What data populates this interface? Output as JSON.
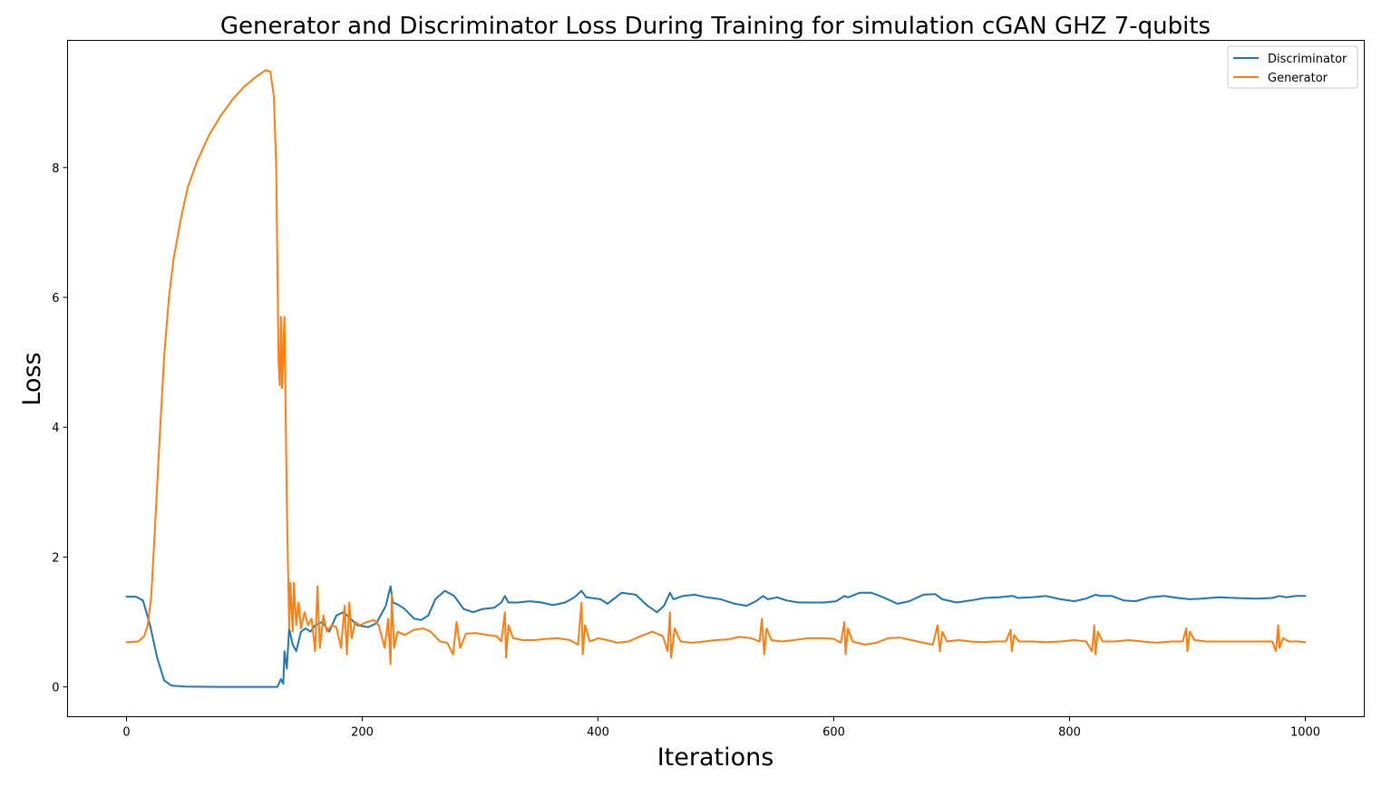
{
  "chart_data": {
    "type": "line",
    "title": "Generator and Discriminator Loss During Training for simulation cGAN GHZ 7-qubits",
    "xlabel": "Iterations",
    "ylabel": "Loss",
    "xlim": [
      -50,
      1050
    ],
    "ylim": [
      -0.46,
      9.96
    ],
    "xticks": [
      0,
      200,
      400,
      600,
      800,
      1000
    ],
    "yticks": [
      0,
      2,
      4,
      6,
      8
    ],
    "grid": false,
    "legend_position": "top-right",
    "series": [
      {
        "name": "Discriminator",
        "color": "#1f77b4",
        "points": [
          [
            0,
            1.39
          ],
          [
            8,
            1.39
          ],
          [
            14,
            1.33
          ],
          [
            20,
            0.95
          ],
          [
            26,
            0.45
          ],
          [
            32,
            0.1
          ],
          [
            38,
            0.02
          ],
          [
            50,
            0.005
          ],
          [
            80,
            0.0
          ],
          [
            120,
            0.0
          ],
          [
            128,
            0.0
          ],
          [
            131,
            0.12
          ],
          [
            133,
            0.05
          ],
          [
            134,
            0.55
          ],
          [
            136,
            0.28
          ],
          [
            138,
            0.9
          ],
          [
            141,
            0.65
          ],
          [
            144,
            0.55
          ],
          [
            148,
            0.85
          ],
          [
            152,
            0.9
          ],
          [
            156,
            0.85
          ],
          [
            160,
            0.95
          ],
          [
            166,
            1.0
          ],
          [
            172,
            0.85
          ],
          [
            178,
            1.1
          ],
          [
            184,
            1.15
          ],
          [
            190,
            1.05
          ],
          [
            196,
            0.95
          ],
          [
            205,
            0.92
          ],
          [
            212,
            0.98
          ],
          [
            220,
            1.25
          ],
          [
            224,
            1.55
          ],
          [
            226,
            1.3
          ],
          [
            230,
            1.27
          ],
          [
            236,
            1.2
          ],
          [
            244,
            1.05
          ],
          [
            250,
            1.03
          ],
          [
            256,
            1.1
          ],
          [
            262,
            1.35
          ],
          [
            270,
            1.48
          ],
          [
            278,
            1.4
          ],
          [
            286,
            1.2
          ],
          [
            294,
            1.15
          ],
          [
            302,
            1.2
          ],
          [
            312,
            1.22
          ],
          [
            318,
            1.3
          ],
          [
            321,
            1.4
          ],
          [
            324,
            1.3
          ],
          [
            332,
            1.3
          ],
          [
            342,
            1.32
          ],
          [
            352,
            1.3
          ],
          [
            362,
            1.26
          ],
          [
            372,
            1.3
          ],
          [
            380,
            1.38
          ],
          [
            386,
            1.48
          ],
          [
            390,
            1.38
          ],
          [
            402,
            1.35
          ],
          [
            408,
            1.28
          ],
          [
            420,
            1.45
          ],
          [
            432,
            1.42
          ],
          [
            442,
            1.25
          ],
          [
            450,
            1.15
          ],
          [
            456,
            1.25
          ],
          [
            461,
            1.45
          ],
          [
            464,
            1.35
          ],
          [
            472,
            1.4
          ],
          [
            482,
            1.42
          ],
          [
            492,
            1.38
          ],
          [
            504,
            1.35
          ],
          [
            516,
            1.28
          ],
          [
            526,
            1.25
          ],
          [
            534,
            1.32
          ],
          [
            540,
            1.4
          ],
          [
            544,
            1.35
          ],
          [
            552,
            1.38
          ],
          [
            560,
            1.33
          ],
          [
            570,
            1.3
          ],
          [
            580,
            1.3
          ],
          [
            592,
            1.3
          ],
          [
            602,
            1.32
          ],
          [
            609,
            1.4
          ],
          [
            612,
            1.38
          ],
          [
            622,
            1.45
          ],
          [
            632,
            1.45
          ],
          [
            642,
            1.38
          ],
          [
            654,
            1.28
          ],
          [
            664,
            1.32
          ],
          [
            676,
            1.42
          ],
          [
            686,
            1.43
          ],
          [
            692,
            1.35
          ],
          [
            704,
            1.3
          ],
          [
            716,
            1.33
          ],
          [
            728,
            1.37
          ],
          [
            740,
            1.38
          ],
          [
            752,
            1.4
          ],
          [
            756,
            1.37
          ],
          [
            768,
            1.38
          ],
          [
            780,
            1.4
          ],
          [
            792,
            1.35
          ],
          [
            804,
            1.32
          ],
          [
            814,
            1.36
          ],
          [
            822,
            1.42
          ],
          [
            826,
            1.4
          ],
          [
            836,
            1.4
          ],
          [
            846,
            1.33
          ],
          [
            856,
            1.32
          ],
          [
            868,
            1.38
          ],
          [
            880,
            1.4
          ],
          [
            892,
            1.37
          ],
          [
            902,
            1.35
          ],
          [
            912,
            1.36
          ],
          [
            926,
            1.38
          ],
          [
            940,
            1.37
          ],
          [
            958,
            1.36
          ],
          [
            972,
            1.37
          ],
          [
            978,
            1.4
          ],
          [
            984,
            1.38
          ],
          [
            992,
            1.4
          ],
          [
            1000,
            1.4
          ]
        ]
      },
      {
        "name": "Generator",
        "color": "#ff7f0e",
        "points": [
          [
            0,
            0.69
          ],
          [
            10,
            0.7
          ],
          [
            15,
            0.78
          ],
          [
            18,
            0.95
          ],
          [
            21,
            1.4
          ],
          [
            24,
            2.4
          ],
          [
            28,
            3.8
          ],
          [
            32,
            5.1
          ],
          [
            36,
            6.0
          ],
          [
            40,
            6.6
          ],
          [
            46,
            7.2
          ],
          [
            52,
            7.7
          ],
          [
            60,
            8.1
          ],
          [
            70,
            8.5
          ],
          [
            80,
            8.8
          ],
          [
            90,
            9.05
          ],
          [
            100,
            9.25
          ],
          [
            110,
            9.4
          ],
          [
            118,
            9.5
          ],
          [
            122,
            9.48
          ],
          [
            125,
            9.1
          ],
          [
            127,
            8.0
          ],
          [
            128,
            6.5
          ],
          [
            129,
            5.0
          ],
          [
            130,
            4.65
          ],
          [
            131,
            5.7
          ],
          [
            132,
            4.6
          ],
          [
            134,
            5.7
          ],
          [
            136,
            2.8
          ],
          [
            138,
            0.9
          ],
          [
            139,
            1.6
          ],
          [
            141,
            0.85
          ],
          [
            142,
            1.6
          ],
          [
            144,
            0.95
          ],
          [
            146,
            1.3
          ],
          [
            148,
            0.9
          ],
          [
            151,
            1.15
          ],
          [
            154,
            0.95
          ],
          [
            157,
            1.05
          ],
          [
            160,
            0.55
          ],
          [
            162,
            1.55
          ],
          [
            164,
            0.6
          ],
          [
            167,
            1.1
          ],
          [
            170,
            0.85
          ],
          [
            174,
            0.95
          ],
          [
            178,
            0.92
          ],
          [
            182,
            0.6
          ],
          [
            185,
            1.25
          ],
          [
            187,
            0.5
          ],
          [
            189,
            1.3
          ],
          [
            191,
            0.75
          ],
          [
            194,
            1.0
          ],
          [
            198,
            0.95
          ],
          [
            204,
            1.0
          ],
          [
            210,
            1.03
          ],
          [
            214,
            0.95
          ],
          [
            219,
            0.6
          ],
          [
            222,
            1.05
          ],
          [
            224,
            0.35
          ],
          [
            225,
            1.42
          ],
          [
            227,
            0.6
          ],
          [
            230,
            0.85
          ],
          [
            236,
            0.8
          ],
          [
            244,
            0.88
          ],
          [
            252,
            0.9
          ],
          [
            258,
            0.85
          ],
          [
            266,
            0.7
          ],
          [
            272,
            0.68
          ],
          [
            277,
            0.5
          ],
          [
            280,
            1.0
          ],
          [
            283,
            0.6
          ],
          [
            288,
            0.82
          ],
          [
            296,
            0.83
          ],
          [
            306,
            0.8
          ],
          [
            314,
            0.78
          ],
          [
            318,
            0.7
          ],
          [
            321,
            1.15
          ],
          [
            322,
            0.45
          ],
          [
            324,
            0.95
          ],
          [
            328,
            0.75
          ],
          [
            336,
            0.72
          ],
          [
            346,
            0.72
          ],
          [
            356,
            0.74
          ],
          [
            366,
            0.75
          ],
          [
            376,
            0.72
          ],
          [
            383,
            0.65
          ],
          [
            386,
            1.3
          ],
          [
            387,
            0.5
          ],
          [
            389,
            0.95
          ],
          [
            393,
            0.7
          ],
          [
            400,
            0.75
          ],
          [
            408,
            0.72
          ],
          [
            416,
            0.68
          ],
          [
            426,
            0.7
          ],
          [
            436,
            0.78
          ],
          [
            446,
            0.85
          ],
          [
            455,
            0.78
          ],
          [
            459,
            0.55
          ],
          [
            461,
            1.15
          ],
          [
            462,
            0.45
          ],
          [
            465,
            0.9
          ],
          [
            470,
            0.7
          ],
          [
            480,
            0.68
          ],
          [
            490,
            0.7
          ],
          [
            500,
            0.72
          ],
          [
            510,
            0.73
          ],
          [
            520,
            0.77
          ],
          [
            530,
            0.75
          ],
          [
            537,
            0.7
          ],
          [
            539,
            1.05
          ],
          [
            541,
            0.5
          ],
          [
            543,
            0.9
          ],
          [
            547,
            0.72
          ],
          [
            556,
            0.7
          ],
          [
            566,
            0.72
          ],
          [
            578,
            0.75
          ],
          [
            590,
            0.75
          ],
          [
            600,
            0.74
          ],
          [
            606,
            0.68
          ],
          [
            609,
            1.0
          ],
          [
            610,
            0.5
          ],
          [
            612,
            0.9
          ],
          [
            616,
            0.7
          ],
          [
            626,
            0.65
          ],
          [
            636,
            0.68
          ],
          [
            646,
            0.75
          ],
          [
            656,
            0.76
          ],
          [
            666,
            0.72
          ],
          [
            676,
            0.68
          ],
          [
            684,
            0.65
          ],
          [
            688,
            0.95
          ],
          [
            690,
            0.55
          ],
          [
            692,
            0.85
          ],
          [
            696,
            0.7
          ],
          [
            706,
            0.72
          ],
          [
            716,
            0.7
          ],
          [
            726,
            0.69
          ],
          [
            736,
            0.7
          ],
          [
            746,
            0.7
          ],
          [
            750,
            0.88
          ],
          [
            751,
            0.55
          ],
          [
            753,
            0.8
          ],
          [
            757,
            0.7
          ],
          [
            768,
            0.7
          ],
          [
            780,
            0.69
          ],
          [
            792,
            0.7
          ],
          [
            804,
            0.72
          ],
          [
            814,
            0.7
          ],
          [
            819,
            0.55
          ],
          [
            821,
            0.95
          ],
          [
            822,
            0.5
          ],
          [
            824,
            0.85
          ],
          [
            828,
            0.7
          ],
          [
            838,
            0.7
          ],
          [
            850,
            0.72
          ],
          [
            862,
            0.7
          ],
          [
            874,
            0.68
          ],
          [
            886,
            0.7
          ],
          [
            896,
            0.7
          ],
          [
            899,
            0.9
          ],
          [
            900,
            0.55
          ],
          [
            902,
            0.85
          ],
          [
            906,
            0.72
          ],
          [
            916,
            0.7
          ],
          [
            928,
            0.7
          ],
          [
            940,
            0.7
          ],
          [
            952,
            0.7
          ],
          [
            964,
            0.7
          ],
          [
            972,
            0.7
          ],
          [
            975,
            0.55
          ],
          [
            977,
            0.95
          ],
          [
            978,
            0.6
          ],
          [
            981,
            0.75
          ],
          [
            986,
            0.7
          ],
          [
            994,
            0.7
          ],
          [
            1000,
            0.69
          ]
        ]
      }
    ]
  }
}
